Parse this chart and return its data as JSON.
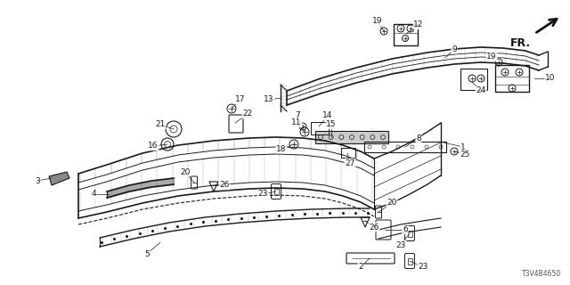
{
  "bg_color": "#ffffff",
  "diagram_code": "T3V4B4650",
  "line_color": "#1a1a1a",
  "label_color": "#1a1a1a",
  "fr_color": "#111111"
}
